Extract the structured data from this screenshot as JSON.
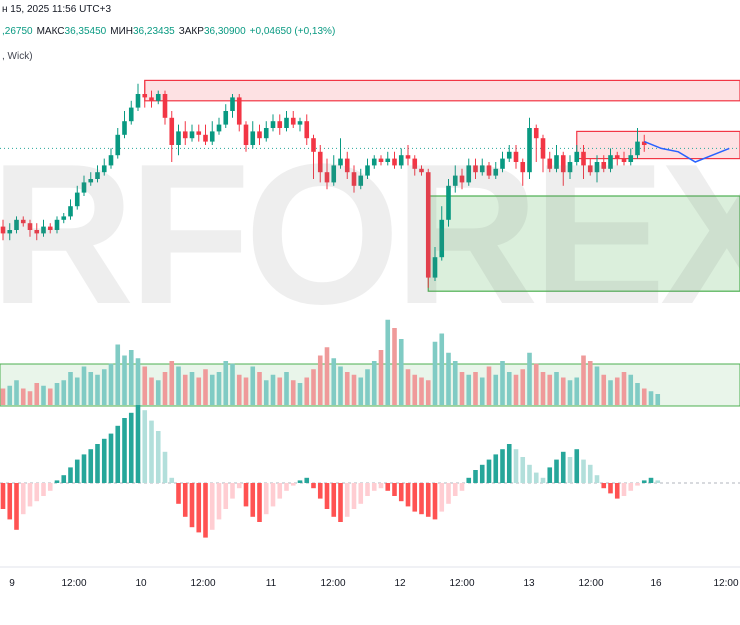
{
  "header": {
    "date_line": "н 15, 2025 11:56 UTC+3",
    "indicator_line": ", Wick)",
    "ohlc": [
      {
        "label": "",
        "value": ",26750"
      },
      {
        "label": "МАКС",
        "value": "36,35450"
      },
      {
        "label": "МИН",
        "value": "36,23435"
      },
      {
        "label": "ЗАКР",
        "value": "36,30900"
      },
      {
        "label": "",
        "value": "+0,04650 (+0,13%)"
      }
    ]
  },
  "watermark": "RFOREX.c",
  "colors": {
    "up": "#089981",
    "down": "#f23645",
    "vol_up": "#80cbc4",
    "vol_down": "#ef9a9a",
    "hist_up_strong": "#26a69a",
    "hist_up_weak": "#b2dfdb",
    "hist_down_strong": "#ff5252",
    "hist_down_weak": "#ffcdd2",
    "zone_red": "#f23645",
    "zone_green": "#4caf50",
    "forecast": "#2962ff"
  },
  "chart_data": {
    "type": "candlestick",
    "x_ticks": [
      "9",
      "12:00",
      "10",
      "12:00",
      "11",
      "12:00",
      "12",
      "12:00",
      "13",
      "12:00",
      "16",
      "12:00"
    ],
    "candles": [
      [
        36.06,
        36.04,
        36.08,
        36.02
      ],
      [
        36.04,
        36.05,
        36.07,
        36.02
      ],
      [
        36.05,
        36.08,
        36.09,
        36.04
      ],
      [
        36.08,
        36.07,
        36.09,
        36.06
      ],
      [
        36.07,
        36.05,
        36.08,
        36.03
      ],
      [
        36.05,
        36.04,
        36.07,
        36.02
      ],
      [
        36.04,
        36.06,
        36.08,
        36.03
      ],
      [
        36.06,
        36.05,
        36.07,
        36.04
      ],
      [
        36.05,
        36.08,
        36.09,
        36.04
      ],
      [
        36.08,
        36.09,
        36.1,
        36.07
      ],
      [
        36.09,
        36.12,
        36.14,
        36.08
      ],
      [
        36.12,
        36.16,
        36.18,
        36.11
      ],
      [
        36.16,
        36.19,
        36.21,
        36.15
      ],
      [
        36.19,
        36.2,
        36.22,
        36.18
      ],
      [
        36.2,
        36.22,
        36.24,
        36.19
      ],
      [
        36.22,
        36.24,
        36.26,
        36.21
      ],
      [
        36.24,
        36.27,
        36.29,
        36.23
      ],
      [
        36.27,
        36.33,
        36.35,
        36.26
      ],
      [
        36.33,
        36.37,
        36.4,
        36.32
      ],
      [
        36.37,
        36.41,
        36.43,
        36.36
      ],
      [
        36.41,
        36.45,
        36.48,
        36.4
      ],
      [
        36.45,
        36.44,
        36.49,
        36.41
      ],
      [
        36.44,
        36.43,
        36.46,
        36.41
      ],
      [
        36.43,
        36.45,
        36.46,
        36.42
      ],
      [
        36.45,
        36.38,
        36.46,
        36.36
      ],
      [
        36.38,
        36.3,
        36.4,
        36.25
      ],
      [
        36.3,
        36.34,
        36.36,
        36.27
      ],
      [
        36.34,
        36.32,
        36.37,
        36.3
      ],
      [
        36.32,
        36.34,
        36.36,
        36.31
      ],
      [
        36.34,
        36.33,
        36.36,
        36.31
      ],
      [
        36.33,
        36.31,
        36.36,
        36.3
      ],
      [
        36.31,
        36.34,
        36.37,
        36.3
      ],
      [
        36.34,
        36.36,
        36.38,
        36.33
      ],
      [
        36.36,
        36.4,
        36.42,
        36.35
      ],
      [
        36.4,
        36.44,
        36.45,
        36.38
      ],
      [
        36.44,
        36.36,
        36.45,
        36.34
      ],
      [
        36.36,
        36.3,
        36.37,
        36.28
      ],
      [
        36.3,
        36.34,
        36.37,
        36.29
      ],
      [
        36.34,
        36.32,
        36.36,
        36.3
      ],
      [
        36.32,
        36.35,
        36.37,
        36.31
      ],
      [
        36.35,
        36.37,
        36.39,
        36.34
      ],
      [
        36.37,
        36.35,
        36.39,
        36.33
      ],
      [
        36.35,
        36.38,
        36.4,
        36.34
      ],
      [
        36.38,
        36.36,
        36.4,
        36.35
      ],
      [
        36.36,
        36.37,
        36.38,
        36.34
      ],
      [
        36.37,
        36.32,
        36.39,
        36.3
      ],
      [
        36.32,
        36.28,
        36.33,
        36.2
      ],
      [
        36.28,
        36.22,
        36.3,
        36.19
      ],
      [
        36.22,
        36.19,
        36.26,
        36.17
      ],
      [
        36.19,
        36.24,
        36.27,
        36.18
      ],
      [
        36.24,
        36.26,
        36.32,
        36.23
      ],
      [
        36.26,
        36.22,
        36.28,
        36.2
      ],
      [
        36.22,
        36.18,
        36.24,
        36.16
      ],
      [
        36.18,
        36.21,
        36.23,
        36.17
      ],
      [
        36.21,
        36.24,
        36.26,
        36.2
      ],
      [
        36.24,
        36.26,
        36.27,
        36.23
      ],
      [
        36.26,
        36.25,
        36.27,
        36.24
      ],
      [
        36.25,
        36.26,
        36.28,
        36.24
      ],
      [
        36.26,
        36.24,
        36.28,
        36.23
      ],
      [
        36.24,
        36.27,
        36.29,
        36.23
      ],
      [
        36.27,
        36.26,
        36.3,
        36.24
      ],
      [
        36.26,
        36.23,
        36.27,
        36.21
      ],
      [
        36.23,
        36.22,
        36.24,
        36.21
      ],
      [
        36.22,
        35.91,
        36.23,
        35.88
      ],
      [
        35.91,
        35.97,
        36.0,
        35.9
      ],
      [
        35.97,
        36.08,
        36.12,
        35.96
      ],
      [
        36.08,
        36.18,
        36.2,
        36.06
      ],
      [
        36.18,
        36.21,
        36.24,
        36.16
      ],
      [
        36.21,
        36.19,
        36.23,
        36.17
      ],
      [
        36.19,
        36.24,
        36.26,
        36.18
      ],
      [
        36.24,
        36.22,
        36.26,
        36.2
      ],
      [
        36.22,
        36.24,
        36.26,
        36.21
      ],
      [
        36.24,
        36.21,
        36.25,
        36.2
      ],
      [
        36.21,
        36.23,
        36.25,
        36.2
      ],
      [
        36.23,
        36.26,
        36.28,
        36.22
      ],
      [
        36.26,
        36.28,
        36.3,
        36.25
      ],
      [
        36.28,
        36.25,
        36.3,
        36.23
      ],
      [
        36.25,
        36.22,
        36.26,
        36.18
      ],
      [
        36.22,
        36.35,
        36.38,
        36.2
      ],
      [
        36.35,
        36.32,
        36.36,
        36.25
      ],
      [
        36.32,
        36.26,
        36.33,
        36.22
      ],
      [
        36.26,
        36.23,
        36.28,
        36.22
      ],
      [
        36.23,
        36.27,
        36.3,
        36.22
      ],
      [
        36.27,
        36.22,
        36.28,
        36.18
      ],
      [
        36.22,
        36.25,
        36.27,
        36.2
      ],
      [
        36.25,
        36.28,
        36.3,
        36.24
      ],
      [
        36.28,
        36.24,
        36.3,
        36.2
      ],
      [
        36.24,
        36.22,
        36.26,
        36.21
      ],
      [
        36.22,
        36.25,
        36.27,
        36.19
      ],
      [
        36.25,
        36.23,
        36.27,
        36.22
      ],
      [
        36.23,
        36.27,
        36.29,
        36.22
      ],
      [
        36.27,
        36.26,
        36.28,
        36.24
      ],
      [
        36.26,
        36.25,
        36.28,
        36.24
      ],
      [
        36.25,
        36.27,
        36.29,
        36.24
      ],
      [
        36.27,
        36.31,
        36.35,
        36.26
      ],
      [
        36.31,
        36.3,
        36.33,
        36.28
      ]
    ],
    "forecast": [
      36.31,
      36.29,
      36.28,
      36.25,
      36.27,
      36.29
    ],
    "volume": [
      6,
      7,
      9,
      6,
      5,
      8,
      7,
      6,
      8,
      9,
      12,
      10,
      14,
      12,
      11,
      13,
      15,
      22,
      18,
      20,
      17,
      14,
      10,
      9,
      12,
      16,
      14,
      11,
      12,
      10,
      13,
      11,
      12,
      16,
      15,
      11,
      10,
      14,
      12,
      9,
      11,
      10,
      12,
      9,
      8,
      10,
      13,
      18,
      21,
      17,
      14,
      12,
      11,
      10,
      13,
      16,
      20,
      31,
      28,
      24,
      13,
      11,
      10,
      9,
      23,
      26,
      19,
      16,
      12,
      11,
      12,
      10,
      14,
      11,
      16,
      12,
      11,
      13,
      19,
      15,
      12,
      11,
      12,
      10,
      9,
      10,
      18,
      16,
      14,
      11,
      9,
      10,
      12,
      11,
      8,
      6,
      5,
      4
    ],
    "histogram": [
      -0.1,
      -0.14,
      -0.18,
      -0.12,
      -0.09,
      -0.07,
      -0.05,
      -0.03,
      0.01,
      0.03,
      0.06,
      0.09,
      0.11,
      0.13,
      0.15,
      0.17,
      0.19,
      0.22,
      0.25,
      0.27,
      0.3,
      0.28,
      0.24,
      0.2,
      0.12,
      0.02,
      -0.08,
      -0.13,
      -0.17,
      -0.19,
      -0.21,
      -0.18,
      -0.14,
      -0.1,
      -0.06,
      -0.02,
      -0.09,
      -0.13,
      -0.15,
      -0.12,
      -0.09,
      -0.06,
      -0.03,
      -0.01,
      0.01,
      0.02,
      -0.02,
      -0.06,
      -0.1,
      -0.13,
      -0.15,
      -0.13,
      -0.1,
      -0.08,
      -0.05,
      -0.03,
      -0.02,
      -0.03,
      -0.05,
      -0.07,
      -0.09,
      -0.11,
      -0.12,
      -0.13,
      -0.14,
      -0.11,
      -0.08,
      -0.05,
      -0.03,
      0.02,
      0.05,
      0.07,
      0.09,
      0.11,
      0.13,
      0.15,
      0.13,
      0.1,
      0.07,
      0.04,
      0.02,
      0.06,
      0.09,
      0.12,
      0.1,
      0.13,
      0.09,
      0.07,
      0.03,
      -0.02,
      -0.04,
      -0.06,
      -0.05,
      -0.03,
      -0.01,
      0.01,
      0.02,
      0.01
    ],
    "zones": [
      {
        "color": "red",
        "top": 36.49,
        "bottom": 36.43,
        "from": 21,
        "to": 140
      },
      {
        "color": "red",
        "top": 36.34,
        "bottom": 36.26,
        "from": 85,
        "to": 140
      },
      {
        "color": "green",
        "top": 36.15,
        "bottom": 35.87,
        "from": 63,
        "to": 140
      }
    ],
    "price_range": [
      35.55,
      36.55
    ],
    "dotted_line_price": 36.29
  }
}
